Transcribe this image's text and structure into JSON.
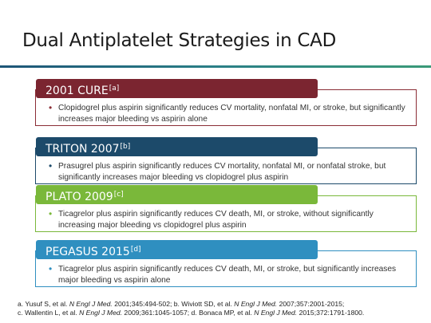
{
  "slide": {
    "title": "Dual Antiplatelet Strategies in CAD",
    "colors": {
      "rule": "#1d5577",
      "cure": "#7b2530",
      "triton": "#1c4a6a",
      "plato": "#7ab83a",
      "pegasus": "#2f8fc0"
    }
  },
  "trials": [
    {
      "name": "2001 CURE",
      "ref": "[a]",
      "color": "#7b2530",
      "bullet": "Clopidogrel plus aspirin significantly reduces CV mortality, nonfatal MI, or stroke, but significantly increases major bleeding vs aspirin alone"
    },
    {
      "name": "TRITON 2007",
      "ref": "[b]",
      "color": "#1c4a6a",
      "bullet": "Prasugrel plus aspirin significantly reduces  CV mortality, nonfatal MI, or nonfatal stroke, but significantly increases major bleeding vs clopidogrel plus aspirin"
    },
    {
      "name": "PLATO 2009",
      "ref": "[c]",
      "color": "#7ab83a",
      "bullet": "Ticagrelor plus aspirin significantly reduces CV death, MI, or stroke, without significantly increasing major bleeding vs clopidogrel plus aspirin"
    },
    {
      "name": "PEGASUS 2015",
      "ref": "[d]",
      "color": "#2f8fc0",
      "bullet": "Ticagrelor plus aspirin significantly reduces CV death, MI, or stroke, but significantly increases major bleeding vs aspirin alone"
    }
  ],
  "references": {
    "a_prefix": "a. Yusuf S, et al. ",
    "a_journal": "N Engl J Med.",
    "a_suffix": " 2001;345:494-502; ",
    "b_prefix": "b. Wiviott SD, et al. ",
    "b_journal": "N Engl J Med.",
    "b_suffix": " 2007;357:2001-2015;",
    "c_prefix": "c. Wallentin L, et al. ",
    "c_journal": "N Engl J Med.",
    "c_suffix": " 2009;361:1045-1057; ",
    "d_prefix": "d. Bonaca MP, et al. ",
    "d_journal": "N Engl J Med.",
    "d_suffix": " 2015;372:1791-1800."
  }
}
